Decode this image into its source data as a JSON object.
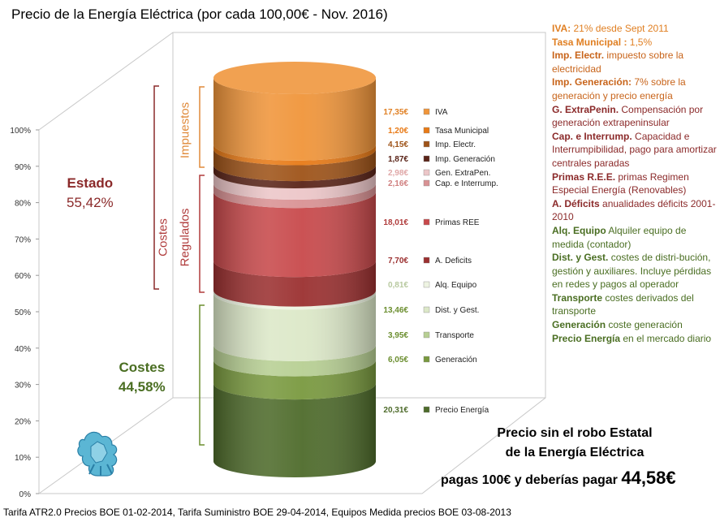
{
  "title": "Precio de la Energía Eléctrica (por cada 100,00€ - Nov. 2016)",
  "footer": "Tarifa ATR2.0 Precios BOE 01-02-2014,  Tarifa Suministro BOE 29-04-2014,  Equipos Medida precios BOE 03-08-2013",
  "chart_data": {
    "type": "stacked-cylinder",
    "title": "Precio de la Energía Eléctrica (por cada 100,00€ - Nov. 2016)",
    "ylim": [
      0,
      100
    ],
    "yticks": [
      "0%",
      "10%",
      "20%",
      "30%",
      "40%",
      "50%",
      "60%",
      "70%",
      "80%",
      "90%",
      "100%"
    ],
    "segments": [
      {
        "name": "Precio Energía",
        "value": 20.31,
        "label": "20,31€",
        "color": "#4e6b2b",
        "label_color": "#4e6b2b"
      },
      {
        "name": "Generación",
        "value": 6.05,
        "label": "6,05€",
        "color": "#79993f",
        "label_color": "#6b8e2f"
      },
      {
        "name": "Transporte",
        "value": 3.95,
        "label": "3,95€",
        "color": "#b7cf93",
        "label_color": "#6b8e2f"
      },
      {
        "name": "Dist. y Gest.",
        "value": 13.46,
        "label": "13,46€",
        "color": "#dce8c8",
        "label_color": "#6b8e2f"
      },
      {
        "name": "Alq. Equipo",
        "value": 0.81,
        "label": "0,81€",
        "color": "#eef4e2",
        "label_color": "#b8c9a0"
      },
      {
        "name": "A. Deficits",
        "value": 7.7,
        "label": "7,70€",
        "color": "#9b3030",
        "label_color": "#9b3030"
      },
      {
        "name": "Primas REE",
        "value": 18.01,
        "label": "18,01€",
        "color": "#c8494b",
        "label_color": "#b03c3c"
      },
      {
        "name": "Cap. e Interrump.",
        "value": 2.16,
        "label": "2,16€",
        "color": "#d99294",
        "label_color": "#d08080"
      },
      {
        "name": "Gen. ExtraPen.",
        "value": 2.98,
        "label": "2,98€",
        "color": "#ecc6c8",
        "label_color": "#e0a8a8"
      },
      {
        "name": "Imp. Generación",
        "value": 1.87,
        "label": "1,87€",
        "color": "#5a2418",
        "label_color": "#5a2418"
      },
      {
        "name": "Imp. Electr.",
        "value": 4.15,
        "label": "4,15€",
        "color": "#9e5318",
        "label_color": "#9e5318"
      },
      {
        "name": "Tasa Municipal",
        "value": 1.2,
        "label": "1,20€",
        "color": "#e87a16",
        "label_color": "#e87a16"
      },
      {
        "name": "IVA",
        "value": 17.35,
        "label": "17,35€",
        "color": "#f0953a",
        "label_color": "#e07f22"
      }
    ],
    "groups": [
      {
        "name": "Estado",
        "value": "55,42%",
        "color": "#8b2a2a"
      },
      {
        "name": "Costes",
        "value": "44,58%",
        "color": "#4a6e22"
      }
    ],
    "brackets": [
      {
        "name": "Impuestos",
        "color": "#e08a3a"
      },
      {
        "name": "Costes Regulados",
        "line1": "Costes",
        "line2": "Regulados",
        "color": "#b03c3c"
      }
    ]
  },
  "descriptions": [
    {
      "term": "IVA:",
      "text": " 21% desde Sept 2011",
      "color": "#e07f22"
    },
    {
      "term": "Tasa Municipal :",
      "text": " 1,5%",
      "color": "#e07f22"
    },
    {
      "term": "Imp. Electr.",
      "text": "  impuesto sobre la electricidad",
      "color": "#c8641a"
    },
    {
      "term": "Imp. Generación:",
      "text": " 7%  sobre la generación y precio energía",
      "color": "#c8641a"
    },
    {
      "term": "G. ExtraPenin.",
      "text": " Compensación por generación extrapeninsular",
      "color": "#8b2a2a"
    },
    {
      "term": "Cap. e Interrump.",
      "text": " Capacidad e Interrumpibilidad, pago para amortizar centrales paradas",
      "color": "#8b2a2a"
    },
    {
      "term": "Primas R.E.E.",
      "text": "  primas Regimen Especial Energía (Renovables)",
      "color": "#8b2a2a"
    },
    {
      "term": "A. Déficits",
      "text": " anualidades déficits 2001-2010",
      "color": "#8b2a2a"
    },
    {
      "term": "Alq. Equipo",
      "text": " Alquiler equipo de medida (contador)",
      "color": "#4a6e22"
    },
    {
      "term": "Dist. y Gest.",
      "text": " costes de distri-bución, gestión y auxiliares. Incluye pérdidas en redes y pagos al operador",
      "color": "#4a6e22"
    },
    {
      "term": "Transporte",
      "text": " costes derivados del transporte",
      "color": "#4a6e22"
    },
    {
      "term": "Generación",
      "text": " coste generación",
      "color": "#4a6e22"
    },
    {
      "term": "Precio Energía",
      "text": " en el mercado diario",
      "color": "#4a6e22"
    }
  ],
  "bottom": {
    "line1": "Precio sin el robo Estatal",
    "line2": "de la Energía Eléctrica",
    "line3_prefix": "pagas 100€ y deberías pagar ",
    "line3_value": "44,58€"
  }
}
